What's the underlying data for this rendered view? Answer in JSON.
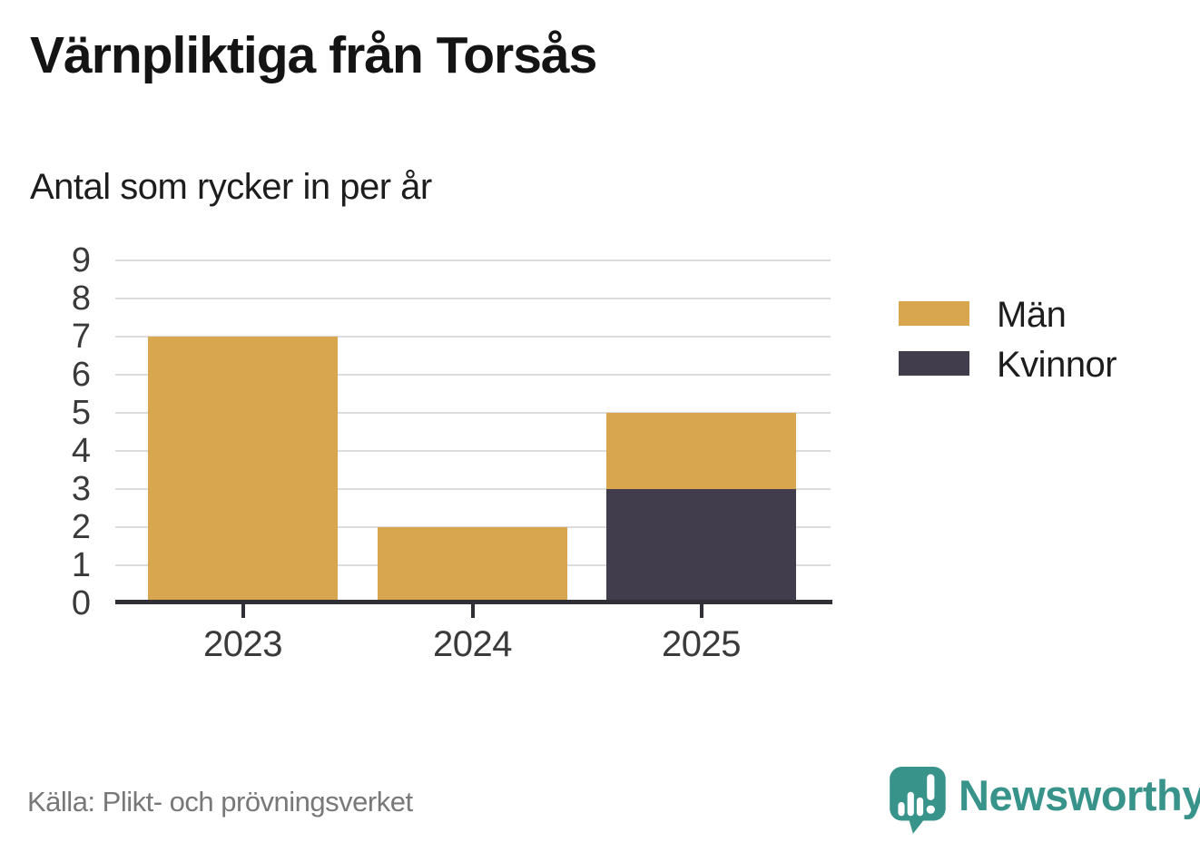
{
  "title": "Värnpliktiga från Torsås",
  "subtitle": "Antal som rycker in per år",
  "source": "Källa: Plikt- och prövningsverket",
  "branding": {
    "name": "Newsworthy",
    "color": "#38948b",
    "icon": "newsworthy-speech-bubble-bar-chart-icon"
  },
  "colors": {
    "men": "#d7a64e",
    "women": "#413d4c",
    "gridline": "#dcdcdc",
    "axis": "#2f2f35",
    "tick_label": "#3a3a3a",
    "source_text": "#787878"
  },
  "legend": {
    "items": [
      {
        "label": "Män",
        "color": "#d7a64e"
      },
      {
        "label": "Kvinnor",
        "color": "#413d4c"
      }
    ]
  },
  "chart_data": {
    "type": "bar",
    "stacked": true,
    "title": "Värnpliktiga från Torsås",
    "subtitle": "Antal som rycker in per år",
    "categories": [
      "2023",
      "2024",
      "2025"
    ],
    "series": [
      {
        "name": "Män",
        "color": "#d7a64e",
        "values": [
          7,
          2,
          2
        ]
      },
      {
        "name": "Kvinnor",
        "color": "#413d4c",
        "values": [
          0,
          0,
          3
        ]
      }
    ],
    "stack_order_bottom_up": [
      "Kvinnor",
      "Män"
    ],
    "totals": [
      7,
      2,
      5
    ],
    "xlabel": "",
    "ylabel": "",
    "ylim": [
      0,
      9
    ],
    "yticks": [
      0,
      1,
      2,
      3,
      4,
      5,
      6,
      7,
      8,
      9
    ],
    "grid": true,
    "legend_position": "right"
  }
}
